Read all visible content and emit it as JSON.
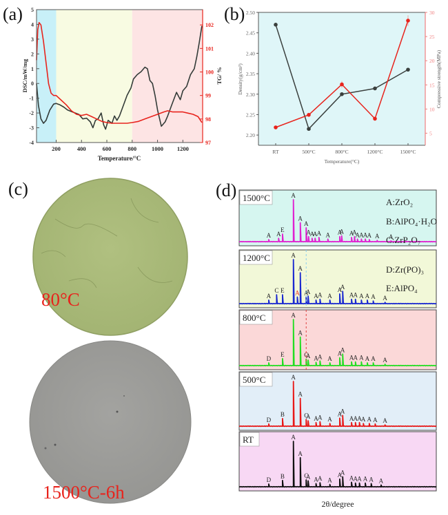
{
  "panels": {
    "a": {
      "label": "(a)"
    },
    "b": {
      "label": "(b)"
    },
    "c": {
      "label": "(c)",
      "samples": [
        {
          "caption": "80°C",
          "color": "#a8b878"
        },
        {
          "caption": "1500°C-6h",
          "color": "#9b9b98"
        }
      ]
    },
    "d": {
      "label": "(d)"
    }
  },
  "chart_data": [
    {
      "id": "a",
      "type": "line",
      "title": "",
      "xlabel": "Temperature/°C",
      "ylabel": "DSC/mW/mg",
      "y2label": "TG/ %",
      "xlim": [
        45,
        1356
      ],
      "ylim": [
        -4,
        5
      ],
      "y2lim": [
        97,
        102.65
      ],
      "xticks": [
        200,
        400,
        600,
        800,
        1000,
        1200
      ],
      "yticks": [
        -4,
        -3,
        -2,
        -1,
        0,
        1,
        2,
        3,
        4,
        5
      ],
      "y2ticks": [
        97,
        98,
        99,
        100,
        101,
        102
      ],
      "bands": [
        {
          "from": 45,
          "to": 200,
          "color": "#c8f0f8"
        },
        {
          "from": 200,
          "to": 800,
          "color": "#f8fbe2"
        },
        {
          "from": 800,
          "to": 1356,
          "color": "#fde4e4"
        }
      ],
      "series": [
        {
          "name": "DSC",
          "axis": "left",
          "color": "#333b38",
          "x": [
            45,
            60,
            80,
            100,
            120,
            150,
            180,
            200,
            230,
            260,
            290,
            320,
            350,
            380,
            410,
            440,
            470,
            490,
            510,
            530,
            555,
            575,
            590,
            610,
            640,
            660,
            680,
            700,
            730,
            760,
            790,
            810,
            840,
            870,
            900,
            920,
            940,
            960,
            980,
            1000,
            1030,
            1060,
            1080,
            1110,
            1150,
            1180,
            1200,
            1230,
            1260,
            1290,
            1310,
            1330,
            1350
          ],
          "y": [
            0,
            -1.5,
            -2.4,
            -2.7,
            -2.5,
            -1.8,
            -1.4,
            -1.35,
            -1.45,
            -1.6,
            -1.8,
            -1.9,
            -2.0,
            -2.1,
            -2.4,
            -2.35,
            -2.6,
            -3.0,
            -2.5,
            -2.4,
            -2.0,
            -2.8,
            -3.1,
            -2.5,
            -2.7,
            -2.2,
            -2.5,
            -2.2,
            -1.5,
            -0.8,
            -0.3,
            0.3,
            0.6,
            0.8,
            1.1,
            1.0,
            0.2,
            0.0,
            -0.8,
            -1.8,
            -2.9,
            -2.6,
            -2.2,
            -1.5,
            -0.6,
            -1.1,
            -0.5,
            -0.2,
            0.6,
            1.0,
            1.8,
            2.8,
            3.9
          ]
        },
        {
          "name": "TG",
          "axis": "right",
          "color": "#e8231c",
          "x": [
            45,
            55,
            65,
            80,
            100,
            120,
            140,
            160,
            180,
            200,
            240,
            280,
            320,
            360,
            400,
            440,
            480,
            520,
            560,
            600,
            640,
            700,
            760,
            800,
            850,
            900,
            950,
            1000,
            1050,
            1080,
            1120,
            1160,
            1200,
            1240,
            1280,
            1320,
            1350
          ],
          "y": [
            100.5,
            101.8,
            102.1,
            102.0,
            101.3,
            100.4,
            99.5,
            99.1,
            99.0,
            99.0,
            98.8,
            98.6,
            98.35,
            98.2,
            98.15,
            98.2,
            98.1,
            98.0,
            97.9,
            97.85,
            97.82,
            97.82,
            97.82,
            97.85,
            97.9,
            98.0,
            98.1,
            98.2,
            98.3,
            98.35,
            98.3,
            98.3,
            98.3,
            98.25,
            98.2,
            98.1,
            97.85
          ]
        }
      ]
    },
    {
      "id": "b",
      "type": "line",
      "title": "",
      "xlabel": "Temperature(°C)",
      "ylabel": "Density(g/cm³)",
      "y2label": "Compressive strength(MPa)",
      "categories": [
        "RT",
        "500°C",
        "800°C",
        "1200°C",
        "1500°C"
      ],
      "ylim": [
        2.175,
        2.5
      ],
      "y2lim": [
        2.5,
        30
      ],
      "yticks": [
        2.2,
        2.25,
        2.3,
        2.35,
        2.4,
        2.45,
        2.5
      ],
      "y2ticks": [
        5,
        10,
        15,
        20,
        25,
        30
      ],
      "background": "#dff6f8",
      "series": [
        {
          "name": "Density",
          "axis": "left",
          "color": "#3a3f3d",
          "values": [
            2.47,
            2.215,
            2.3,
            2.314,
            2.36
          ]
        },
        {
          "name": "Compressive strength",
          "axis": "right",
          "color": "#e8231c",
          "values": [
            6.2,
            8.8,
            15.1,
            8.0,
            28.3
          ],
          "errors": [
            0.3,
            0.4,
            0.7,
            0.4,
            1.1
          ]
        }
      ]
    },
    {
      "id": "d",
      "type": "line",
      "xlabel": "2θ/degree",
      "legend": [
        "A:ZrO₂",
        "B:AlPO₄·H₂O",
        "C:ZrP₂O₇",
        "D:Zr(PO)₃",
        "E:AlPO₄"
      ],
      "legend_placement": "top-right",
      "xlim": [
        0,
        100
      ],
      "patterns": [
        {
          "name": "1500°C",
          "color": "#e020d0",
          "background": "#d6f6f0",
          "peaks": [
            [
              15,
              0.05,
              "A"
            ],
            [
              20,
              0.08,
              "A"
            ],
            [
              22,
              0.18,
              "E"
            ],
            [
              27.5,
              1.0,
              "A"
            ],
            [
              31,
              0.45,
              "A"
            ],
            [
              34,
              0.33,
              "A"
            ],
            [
              35.2,
              0.12,
              "A"
            ],
            [
              37,
              0.08,
              "A"
            ],
            [
              38.5,
              0.08,
              "A"
            ],
            [
              40.5,
              0.1,
              "A"
            ],
            [
              45,
              0.06,
              "A"
            ],
            [
              51,
              0.12,
              "A"
            ],
            [
              52,
              0.14,
              "A"
            ],
            [
              57,
              0.1,
              "A"
            ],
            [
              58.5,
              0.12,
              "A"
            ],
            [
              60,
              0.06,
              "A"
            ],
            [
              62,
              0.06,
              "A"
            ],
            [
              64,
              0.06,
              "A"
            ],
            [
              66,
              0.05,
              "A"
            ],
            [
              70,
              0.03,
              "A"
            ],
            [
              77,
              0.02,
              "A"
            ]
          ]
        },
        {
          "name": "1200°C",
          "color": "#1a28d0",
          "background": "#f2f8d8",
          "peaks": [
            [
              15,
              0.08,
              "A"
            ],
            [
              19,
              0.2,
              "C"
            ],
            [
              22,
              0.2,
              "E"
            ],
            [
              27.5,
              1.0,
              "A"
            ],
            [
              29.5,
              0.15,
              "A",
              "#e8231c"
            ],
            [
              31,
              0.7,
              "A"
            ],
            [
              34,
              0.15,
              "A"
            ],
            [
              35,
              0.17,
              "A"
            ],
            [
              39,
              0.08,
              "A"
            ],
            [
              41,
              0.1,
              "A"
            ],
            [
              46,
              0.08,
              "A"
            ],
            [
              51,
              0.22,
              "A"
            ],
            [
              52.5,
              0.28,
              "A"
            ],
            [
              57,
              0.1,
              "A"
            ],
            [
              59,
              0.1,
              "A"
            ],
            [
              62,
              0.08,
              "A"
            ],
            [
              65,
              0.08,
              "A"
            ],
            [
              68,
              0.06,
              "A"
            ],
            [
              74,
              0.03,
              "A"
            ]
          ]
        },
        {
          "name": "800°C",
          "color": "#22dd22",
          "background": "#fbd8d8",
          "peaks": [
            [
              15,
              0.06,
              "D"
            ],
            [
              22,
              0.15,
              "E"
            ],
            [
              27.5,
              1.0,
              "A"
            ],
            [
              31,
              0.62,
              "A"
            ],
            [
              34,
              0.14,
              "C"
            ],
            [
              35,
              0.12,
              "A"
            ],
            [
              39,
              0.07,
              "A"
            ],
            [
              41,
              0.1,
              "A"
            ],
            [
              46,
              0.06,
              "A"
            ],
            [
              51,
              0.17,
              "A"
            ],
            [
              52.5,
              0.25,
              "A"
            ],
            [
              57,
              0.08,
              "A"
            ],
            [
              59,
              0.08,
              "A"
            ],
            [
              62,
              0.08,
              "A"
            ],
            [
              65,
              0.06,
              "A"
            ],
            [
              68,
              0.06,
              "A"
            ],
            [
              74,
              0.03,
              "A"
            ]
          ]
        },
        {
          "name": "500°C",
          "color": "#e81818",
          "background": "#e2eef8",
          "peaks": [
            [
              15,
              0.05,
              "D"
            ],
            [
              22,
              0.17,
              "B"
            ],
            [
              27.5,
              1.0,
              "A"
            ],
            [
              31,
              0.62,
              "A"
            ],
            [
              34,
              0.15,
              "C"
            ],
            [
              35,
              0.12,
              "A"
            ],
            [
              39,
              0.08,
              "A"
            ],
            [
              41,
              0.1,
              "A"
            ],
            [
              46,
              0.06,
              "A"
            ],
            [
              51,
              0.18,
              "A"
            ],
            [
              52.5,
              0.24,
              "A"
            ],
            [
              57,
              0.08,
              "A"
            ],
            [
              59,
              0.08,
              "A"
            ],
            [
              61,
              0.08,
              "A"
            ],
            [
              63,
              0.06,
              "A"
            ],
            [
              66,
              0.06,
              "A"
            ],
            [
              69,
              0.05,
              "A"
            ],
            [
              74,
              0.03,
              "A"
            ]
          ]
        },
        {
          "name": "RT",
          "color": "#101010",
          "background": "#f8d8f4",
          "peaks": [
            [
              15,
              0.06,
              "D"
            ],
            [
              22,
              0.14,
              "B"
            ],
            [
              27.5,
              1.0,
              "A"
            ],
            [
              31,
              0.64,
              "A"
            ],
            [
              34,
              0.15,
              "C"
            ],
            [
              35,
              0.13,
              "A"
            ],
            [
              39,
              0.07,
              "A"
            ],
            [
              41,
              0.09,
              "A"
            ],
            [
              46,
              0.05,
              "A"
            ],
            [
              51,
              0.17,
              "A"
            ],
            [
              52.5,
              0.22,
              "A"
            ],
            [
              57,
              0.1,
              "A"
            ],
            [
              59,
              0.08,
              "A"
            ],
            [
              61,
              0.08,
              "A"
            ],
            [
              64,
              0.08,
              "A"
            ],
            [
              67,
              0.07,
              "A"
            ],
            [
              72,
              0.04,
              "A"
            ]
          ]
        }
      ],
      "reference_lines": [
        {
          "x": 34,
          "rows": [
            "1200°C"
          ],
          "color": "#88ccee",
          "style": "dashed"
        },
        {
          "x": 34,
          "rows": [
            "800°C"
          ],
          "color": "#e04040",
          "style": "dashed"
        }
      ]
    }
  ]
}
